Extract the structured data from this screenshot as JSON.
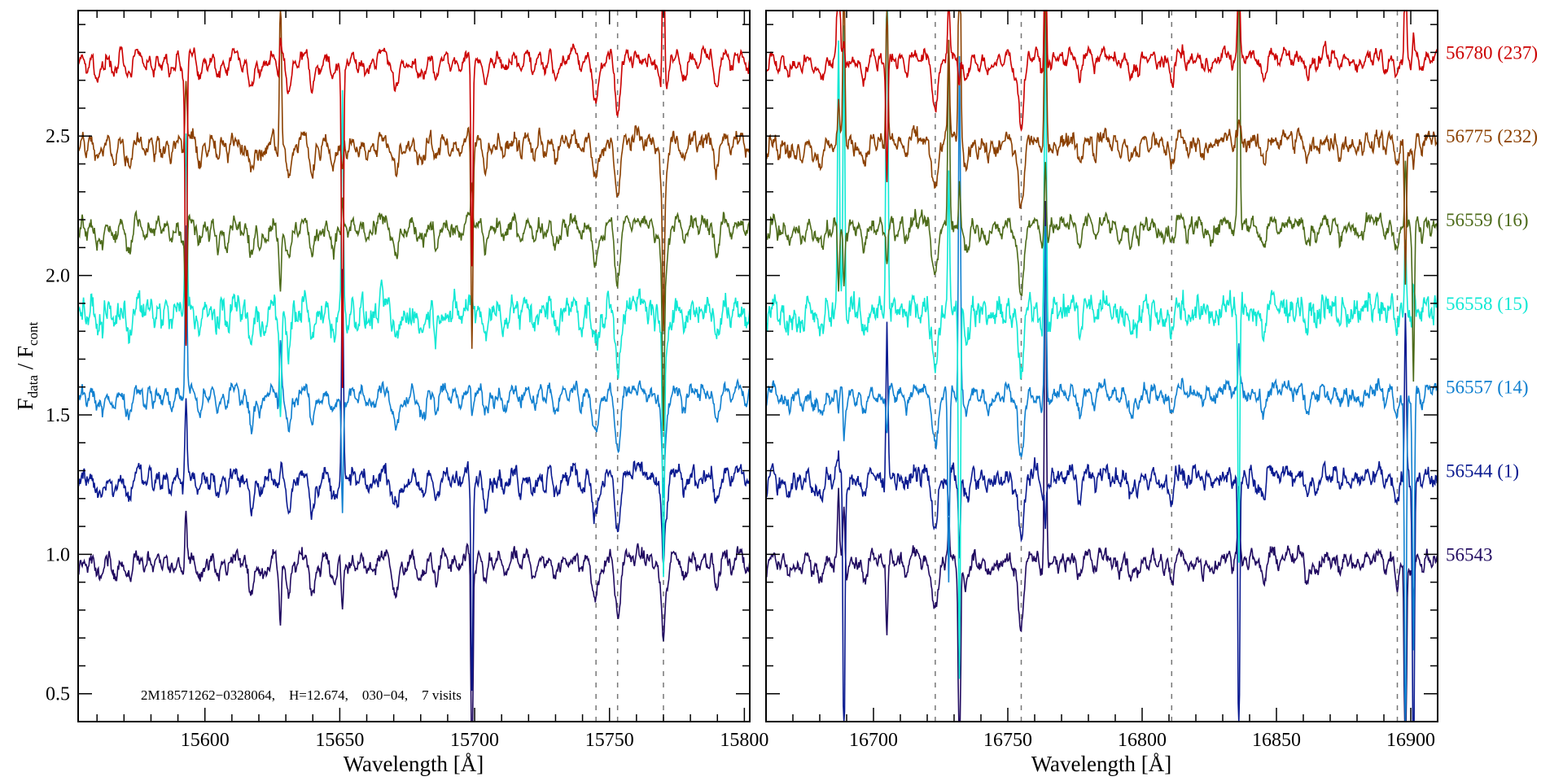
{
  "chart_data": {
    "type": "line",
    "title": "",
    "xlabel": "Wavelength [Å]",
    "ylabel": {
      "main": "F",
      "sub1": "data",
      "sep": " / ",
      "main2": "F",
      "sub2": "cont"
    },
    "ylim": [
      0.4,
      2.95
    ],
    "yticks": [
      "0.5",
      "1.0",
      "1.5",
      "2.0",
      "2.5"
    ],
    "grid": false,
    "panels": [
      {
        "xlim": [
          15553,
          15802
        ],
        "xticks": [
          "15600",
          "15650",
          "15700",
          "15750",
          "15800"
        ],
        "dashed_lines": [
          15745,
          15753,
          15770
        ],
        "absorption_lines": [
          [
            15560,
            0.08
          ],
          [
            15566,
            0.06
          ],
          [
            15571,
            0.07
          ],
          [
            15588,
            0.05
          ],
          [
            15598,
            0.07
          ],
          [
            15605,
            0.05
          ],
          [
            15617,
            0.08
          ],
          [
            15621,
            0.06
          ],
          [
            15631,
            0.1
          ],
          [
            15640,
            0.08
          ],
          [
            15647,
            0.06
          ],
          [
            15661,
            0.05
          ],
          [
            15671,
            0.1
          ],
          [
            15680,
            0.06
          ],
          [
            15686,
            0.05
          ],
          [
            15694,
            0.05
          ],
          [
            15704,
            0.05
          ],
          [
            15711,
            0.06
          ],
          [
            15722,
            0.05
          ],
          [
            15731,
            0.05
          ],
          [
            15745,
            0.15
          ],
          [
            15753,
            0.18
          ],
          [
            15770,
            0.22
          ],
          [
            15778,
            0.06
          ],
          [
            15790,
            0.07
          ]
        ],
        "sky_lines": [
          15593,
          15628,
          15651,
          15699,
          15770
        ]
      },
      {
        "xlim": [
          16660,
          16910
        ],
        "xticks": [
          "16700",
          "16750",
          "16800",
          "16850",
          "16900"
        ],
        "dashed_lines": [
          16723,
          16755,
          16811,
          16895
        ],
        "absorption_lines": [
          [
            16668,
            0.06
          ],
          [
            16680,
            0.08
          ],
          [
            16697,
            0.06
          ],
          [
            16712,
            0.05
          ],
          [
            16723,
            0.2
          ],
          [
            16735,
            0.06
          ],
          [
            16745,
            0.05
          ],
          [
            16755,
            0.22
          ],
          [
            16765,
            0.06
          ],
          [
            16777,
            0.04
          ],
          [
            16795,
            0.05
          ],
          [
            16811,
            0.05
          ],
          [
            16826,
            0.05
          ],
          [
            16845,
            0.04
          ],
          [
            16862,
            0.05
          ],
          [
            16880,
            0.04
          ],
          [
            16895,
            0.05
          ]
        ],
        "sky_lines": [
          16687,
          16689,
          16705,
          16728,
          16732,
          16764,
          16836,
          16898,
          16901
        ]
      }
    ],
    "series": [
      {
        "label": "56780 (237)",
        "offset": 2.8,
        "color": "#cc0000",
        "noise": 0.022
      },
      {
        "label": "56775 (232)",
        "offset": 2.5,
        "color": "#8b4000",
        "noise": 0.028
      },
      {
        "label": "56559 (16)",
        "offset": 2.2,
        "color": "#4d6b1a",
        "noise": 0.028
      },
      {
        "label": "56558 (15)",
        "offset": 1.9,
        "color": "#10e8d4",
        "noise": 0.045
      },
      {
        "label": "56557 (14)",
        "offset": 1.6,
        "color": "#1080d0",
        "noise": 0.025
      },
      {
        "label": "56544 (1)",
        "offset": 1.3,
        "color": "#0a1a90",
        "noise": 0.03
      },
      {
        "label": "56543",
        "offset": 1.0,
        "color": "#200a60",
        "noise": 0.025
      }
    ],
    "annotation": "2M18571262−0328064,    H=12.674,    030−04,    7 visits"
  }
}
